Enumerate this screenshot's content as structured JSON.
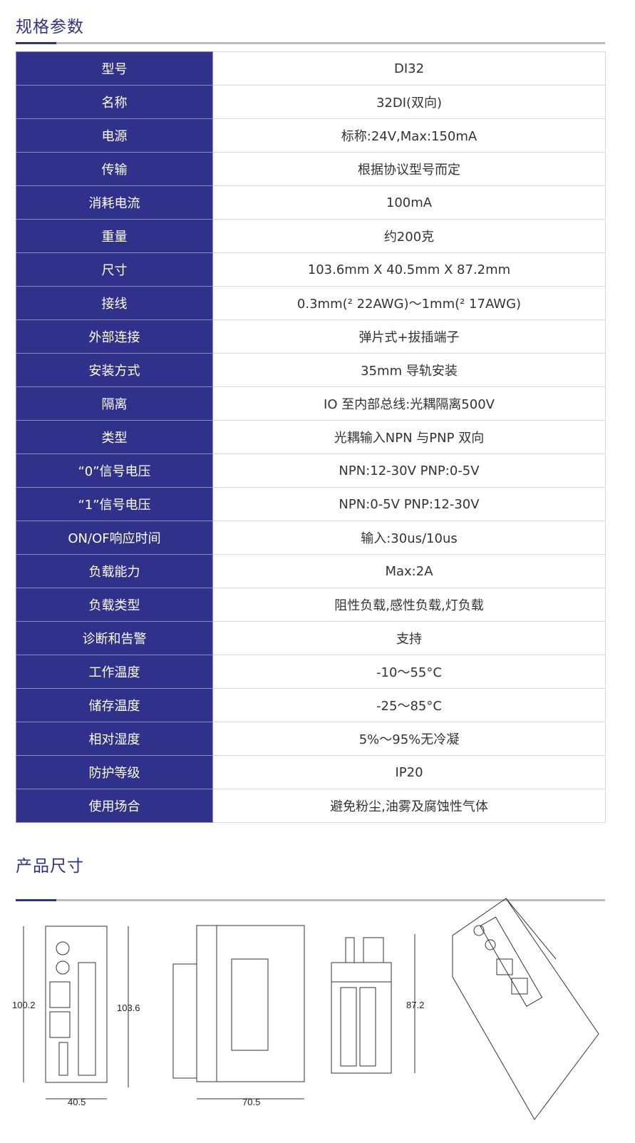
{
  "spec_section": {
    "title": "规格参数"
  },
  "rows": [
    {
      "k": "型号",
      "v": "DI32"
    },
    {
      "k": "名称",
      "v": "32DI(双向)"
    },
    {
      "k": "电源",
      "v": "标称:24V,Max:150mA"
    },
    {
      "k": "传输",
      "v": "根据协议型号而定"
    },
    {
      "k": "消耗电流",
      "v": "100mA"
    },
    {
      "k": "重量",
      "v": "约200克"
    },
    {
      "k": "尺寸",
      "v": "103.6mm X 40.5mm X 87.2mm"
    },
    {
      "k": "接线",
      "v": "0.3mm(² 22AWG)～1mm(² 17AWG)"
    },
    {
      "k": "外部连接",
      "v": "弹片式+拔插端子"
    },
    {
      "k": "安装方式",
      "v": "35mm 导轨安装"
    },
    {
      "k": "隔离",
      "v": "IO 至内部总线:光耦隔离500V"
    },
    {
      "k": "类型",
      "v": "光耦输入NPN 与PNP 双向"
    },
    {
      "k": "“0”信号电压",
      "v": "NPN:12-30V PNP:0-5V"
    },
    {
      "k": "“1”信号电压",
      "v": "NPN:0-5V PNP:12-30V"
    },
    {
      "k": "ON/OF响应时间",
      "v": "输入:30us/10us"
    },
    {
      "k": "负载能力",
      "v": "Max:2A"
    },
    {
      "k": "负载类型",
      "v": "阻性负载,感性负载,灯负载"
    },
    {
      "k": "诊断和告警",
      "v": "支持"
    },
    {
      "k": "工作温度",
      "v": "-10～55°C"
    },
    {
      "k": "储存温度",
      "v": "-25～85°C"
    },
    {
      "k": "相对湿度",
      "v": "5%～95%无冷凝"
    },
    {
      "k": "防护等级",
      "v": "IP20"
    },
    {
      "k": "使用场合",
      "v": "避免粉尘,油雾及腐蚀性气体"
    }
  ],
  "dim_section": {
    "title": "产品尺寸"
  },
  "dims": {
    "front_height_left": "100.2",
    "front_height_right": "103.6",
    "front_width": "40.5",
    "side_width": "70.5",
    "top_depth": "87.2"
  },
  "colors": {
    "accent": "#2f318a"
  }
}
